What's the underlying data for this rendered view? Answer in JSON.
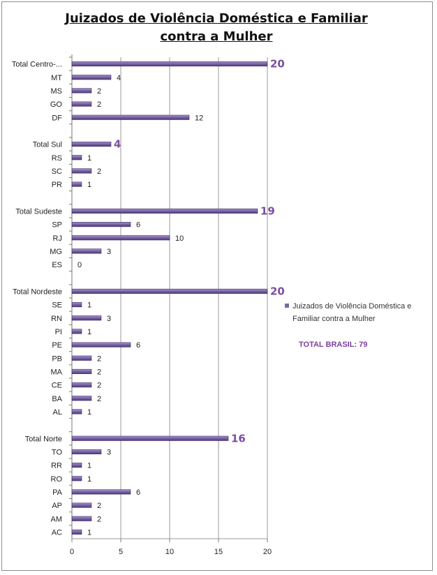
{
  "chart_data": {
    "type": "bar",
    "orientation": "horizontal",
    "title": "Juizados de Violência Doméstica e Familiar contra a Mulher",
    "title_lines": [
      "Juizados de Violência Doméstica e Familiar",
      "contra a Mulher"
    ],
    "series_name": "Juizados de Violência Doméstica e Familiar contra a Mulher",
    "xlim": [
      0,
      20
    ],
    "xticks": [
      "0",
      "5",
      "10",
      "15",
      "20"
    ],
    "bar_color": "#7b66a8",
    "total_color": "#7b4fa0",
    "categories": [
      "Total Centro-...",
      "MT",
      "MS",
      "GO",
      "DF",
      "",
      "Total Sul",
      "RS",
      "SC",
      "PR",
      "",
      "Total Sudeste",
      "SP",
      "RJ",
      "MG",
      "ES",
      "",
      "Total Nordeste",
      "SE",
      "RN",
      "PI",
      "PE",
      "PB",
      "MA",
      "CE",
      "BA",
      "AL",
      "",
      "Total Norte",
      "TO",
      "RR",
      "RO",
      "PA",
      "AP",
      "AM",
      "AC"
    ],
    "values": [
      20,
      4,
      2,
      2,
      12,
      null,
      4,
      1,
      2,
      1,
      null,
      19,
      6,
      10,
      3,
      0,
      null,
      20,
      1,
      3,
      1,
      6,
      2,
      2,
      2,
      2,
      1,
      null,
      16,
      3,
      1,
      1,
      6,
      2,
      2,
      1
    ],
    "value_labels": [
      "20",
      "4",
      "2",
      "2",
      "12",
      "",
      "4",
      "1",
      "2",
      "1",
      "",
      "19",
      "6",
      "10",
      "3",
      "0",
      "",
      "20",
      "1",
      "3",
      "1",
      "6",
      "2",
      "2",
      "2",
      "2",
      "1",
      "",
      "16",
      "3",
      "1",
      "1",
      "6",
      "2",
      "2",
      "1"
    ],
    "is_total": [
      true,
      false,
      false,
      false,
      false,
      false,
      true,
      false,
      false,
      false,
      false,
      true,
      false,
      false,
      false,
      false,
      false,
      true,
      false,
      false,
      false,
      false,
      false,
      false,
      false,
      false,
      false,
      false,
      true,
      false,
      false,
      false,
      false,
      false,
      false,
      false
    ]
  },
  "legend": {
    "label": "Juizados de Violência Doméstica e Familiar contra a Mulher"
  },
  "total_brasil": "TOTAL BRASIL: 79"
}
